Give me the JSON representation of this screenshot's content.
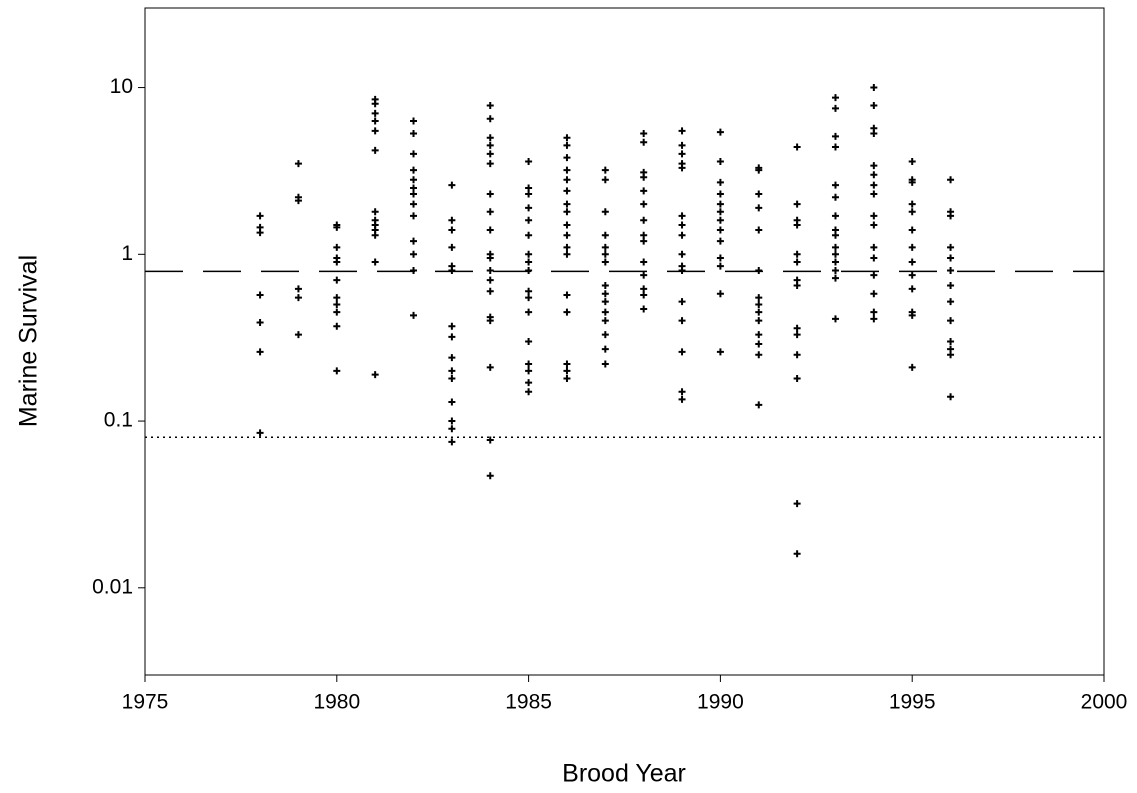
{
  "chart_data": {
    "type": "scatter",
    "xlabel": "Brood Year",
    "ylabel": "Marine Survival",
    "xlim": [
      1975,
      2000
    ],
    "xticks": [
      1975,
      1980,
      1985,
      1990,
      1995,
      2000
    ],
    "ylim": [
      0.003,
      30
    ],
    "yticks": [
      0.01,
      0.1,
      1,
      10
    ],
    "ylog": true,
    "color": "#000000",
    "hlines": [
      {
        "value": 0.79,
        "style": "dashed"
      },
      {
        "value": 0.08,
        "style": "dotted"
      }
    ],
    "x": [
      1978,
      1978,
      1978,
      1978,
      1978,
      1978,
      1978,
      1979,
      1979,
      1979,
      1979,
      1979,
      1979,
      1980,
      1980,
      1980,
      1980,
      1980,
      1980,
      1980,
      1980,
      1980,
      1980,
      1980,
      1981,
      1981,
      1981,
      1981,
      1981,
      1981,
      1981,
      1981,
      1981,
      1981,
      1981,
      1981,
      1981,
      1982,
      1982,
      1982,
      1982,
      1982,
      1982,
      1982,
      1982,
      1982,
      1982,
      1982,
      1982,
      1982,
      1983,
      1983,
      1983,
      1983,
      1983,
      1983,
      1983,
      1983,
      1983,
      1983,
      1983,
      1983,
      1983,
      1983,
      1983,
      1984,
      1984,
      1984,
      1984,
      1984,
      1984,
      1984,
      1984,
      1984,
      1984,
      1984,
      1984,
      1984,
      1984,
      1984,
      1984,
      1984,
      1984,
      1984,
      1985,
      1985,
      1985,
      1985,
      1985,
      1985,
      1985,
      1985,
      1985,
      1985,
      1985,
      1985,
      1985,
      1985,
      1985,
      1985,
      1985,
      1986,
      1986,
      1986,
      1986,
      1986,
      1986,
      1986,
      1986,
      1986,
      1986,
      1986,
      1986,
      1986,
      1986,
      1986,
      1986,
      1986,
      1987,
      1987,
      1987,
      1987,
      1987,
      1987,
      1987,
      1987,
      1987,
      1987,
      1987,
      1987,
      1987,
      1987,
      1987,
      1988,
      1988,
      1988,
      1988,
      1988,
      1988,
      1988,
      1988,
      1988,
      1988,
      1988,
      1988,
      1988,
      1988,
      1989,
      1989,
      1989,
      1989,
      1989,
      1989,
      1989,
      1989,
      1989,
      1989,
      1989,
      1989,
      1989,
      1989,
      1989,
      1989,
      1990,
      1990,
      1990,
      1990,
      1990,
      1990,
      1990,
      1990,
      1990,
      1990,
      1990,
      1990,
      1990,
      1991,
      1991,
      1991,
      1991,
      1991,
      1991,
      1991,
      1991,
      1991,
      1991,
      1991,
      1991,
      1991,
      1991,
      1992,
      1992,
      1992,
      1992,
      1992,
      1992,
      1992,
      1992,
      1992,
      1992,
      1992,
      1992,
      1992,
      1992,
      1993,
      1993,
      1993,
      1993,
      1993,
      1993,
      1993,
      1993,
      1993,
      1993,
      1993,
      1993,
      1993,
      1993,
      1993,
      1994,
      1994,
      1994,
      1994,
      1994,
      1994,
      1994,
      1994,
      1994,
      1994,
      1994,
      1994,
      1994,
      1994,
      1994,
      1994,
      1995,
      1995,
      1995,
      1995,
      1995,
      1995,
      1995,
      1995,
      1995,
      1995,
      1995,
      1995,
      1995,
      1996,
      1996,
      1996,
      1996,
      1996,
      1996,
      1996,
      1996,
      1996,
      1996,
      1996,
      1996,
      1996
    ],
    "values": [
      1.7,
      1.45,
      1.35,
      0.57,
      0.39,
      0.26,
      0.085,
      3.5,
      2.2,
      2.1,
      0.62,
      0.55,
      0.33,
      1.5,
      1.45,
      1.1,
      0.95,
      0.9,
      0.7,
      0.55,
      0.5,
      0.45,
      0.37,
      0.2,
      8.5,
      8,
      7,
      6.3,
      5.5,
      4.2,
      1.8,
      1.6,
      1.5,
      1.4,
      1.3,
      0.9,
      0.19,
      6.3,
      5.3,
      4,
      3.2,
      2.8,
      2.5,
      2.3,
      2,
      1.7,
      1.2,
      1,
      0.8,
      0.43,
      2.6,
      1.6,
      1.4,
      1.1,
      0.85,
      0.8,
      0.37,
      0.32,
      0.24,
      0.2,
      0.18,
      0.13,
      0.1,
      0.09,
      0.075,
      7.8,
      6.5,
      5,
      4.5,
      4,
      3.5,
      2.3,
      1.8,
      1.4,
      1,
      0.95,
      0.8,
      0.7,
      0.6,
      0.42,
      0.4,
      0.21,
      0.077,
      0.047,
      3.6,
      2.5,
      2.3,
      1.9,
      1.6,
      1.3,
      1,
      0.9,
      0.8,
      0.6,
      0.55,
      0.45,
      0.3,
      0.22,
      0.2,
      0.17,
      0.15,
      5,
      4.5,
      3.8,
      3.2,
      2.8,
      2.4,
      2,
      1.8,
      1.5,
      1.3,
      1.1,
      1,
      0.57,
      0.45,
      0.22,
      0.2,
      0.18,
      3.2,
      2.8,
      1.8,
      1.3,
      1.1,
      1,
      0.9,
      0.65,
      0.58,
      0.52,
      0.45,
      0.4,
      0.33,
      0.27,
      0.22,
      5.3,
      4.7,
      3.1,
      2.9,
      2.4,
      2,
      1.6,
      1.3,
      1.2,
      0.9,
      0.75,
      0.62,
      0.57,
      0.47,
      5.5,
      4.5,
      4,
      3.5,
      3.3,
      1.7,
      1.5,
      1.3,
      1,
      0.85,
      0.8,
      0.52,
      0.4,
      0.26,
      0.15,
      0.135,
      5.4,
      3.6,
      2.7,
      2.3,
      2,
      1.8,
      1.6,
      1.4,
      1.2,
      0.95,
      0.85,
      0.58,
      0.26,
      3.3,
      3.2,
      2.3,
      1.9,
      1.4,
      0.8,
      0.55,
      0.5,
      0.45,
      0.4,
      0.33,
      0.29,
      0.25,
      0.125,
      4.4,
      2,
      1.6,
      1.5,
      1,
      0.9,
      0.7,
      0.65,
      0.36,
      0.33,
      0.25,
      0.18,
      0.032,
      0.016,
      8.7,
      7.5,
      5.1,
      4.4,
      2.6,
      2.2,
      1.7,
      1.4,
      1.3,
      1.1,
      1,
      0.9,
      0.8,
      0.72,
      0.41,
      10,
      7.8,
      5.7,
      5.3,
      3.4,
      3,
      2.6,
      2.3,
      1.7,
      1.5,
      1.1,
      0.95,
      0.75,
      0.58,
      0.45,
      0.41,
      3.6,
      2.8,
      2.7,
      2,
      1.8,
      1.4,
      1.1,
      0.9,
      0.75,
      0.62,
      0.45,
      0.43,
      0.21,
      2.8,
      1.8,
      1.7,
      1.1,
      0.95,
      0.8,
      0.65,
      0.52,
      0.4,
      0.3,
      0.27,
      0.25,
      0.14
    ]
  }
}
